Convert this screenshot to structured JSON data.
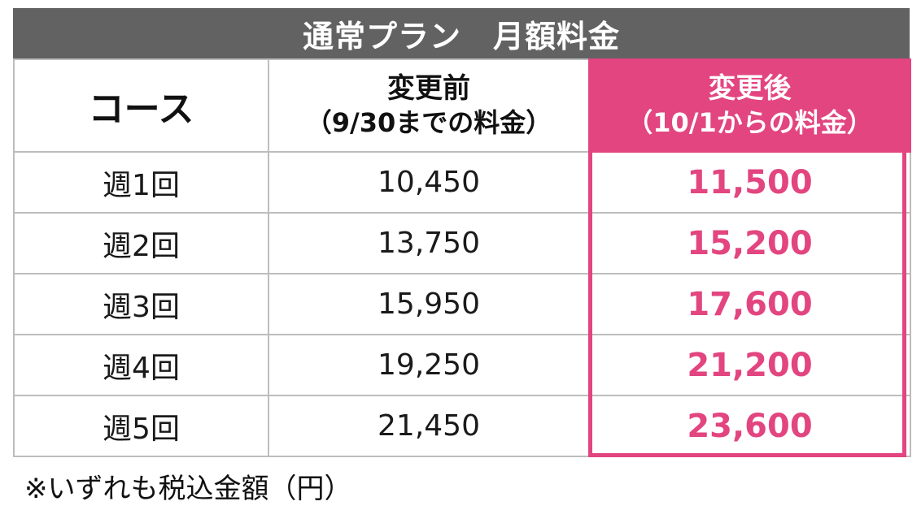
{
  "title": "通常プラン　月額料金",
  "headers": {
    "course": "コース",
    "before_line1": "変更前",
    "before_line2": "（9/30までの料金）",
    "after_line1": "変更後",
    "after_line2": "（10/1からの料金）"
  },
  "rows": [
    {
      "course": "週1回",
      "before": "10,450",
      "after": "11,500"
    },
    {
      "course": "週2回",
      "before": "13,750",
      "after": "15,200"
    },
    {
      "course": "週3回",
      "before": "15,950",
      "after": "17,600"
    },
    {
      "course": "週4回",
      "before": "19,250",
      "after": "21,200"
    },
    {
      "course": "週5回",
      "before": "21,450",
      "after": "23,600"
    }
  ],
  "footnote": "※いずれも税込金額（円）",
  "colors": {
    "title_bg": "#626262",
    "accent": "#e2457f"
  }
}
